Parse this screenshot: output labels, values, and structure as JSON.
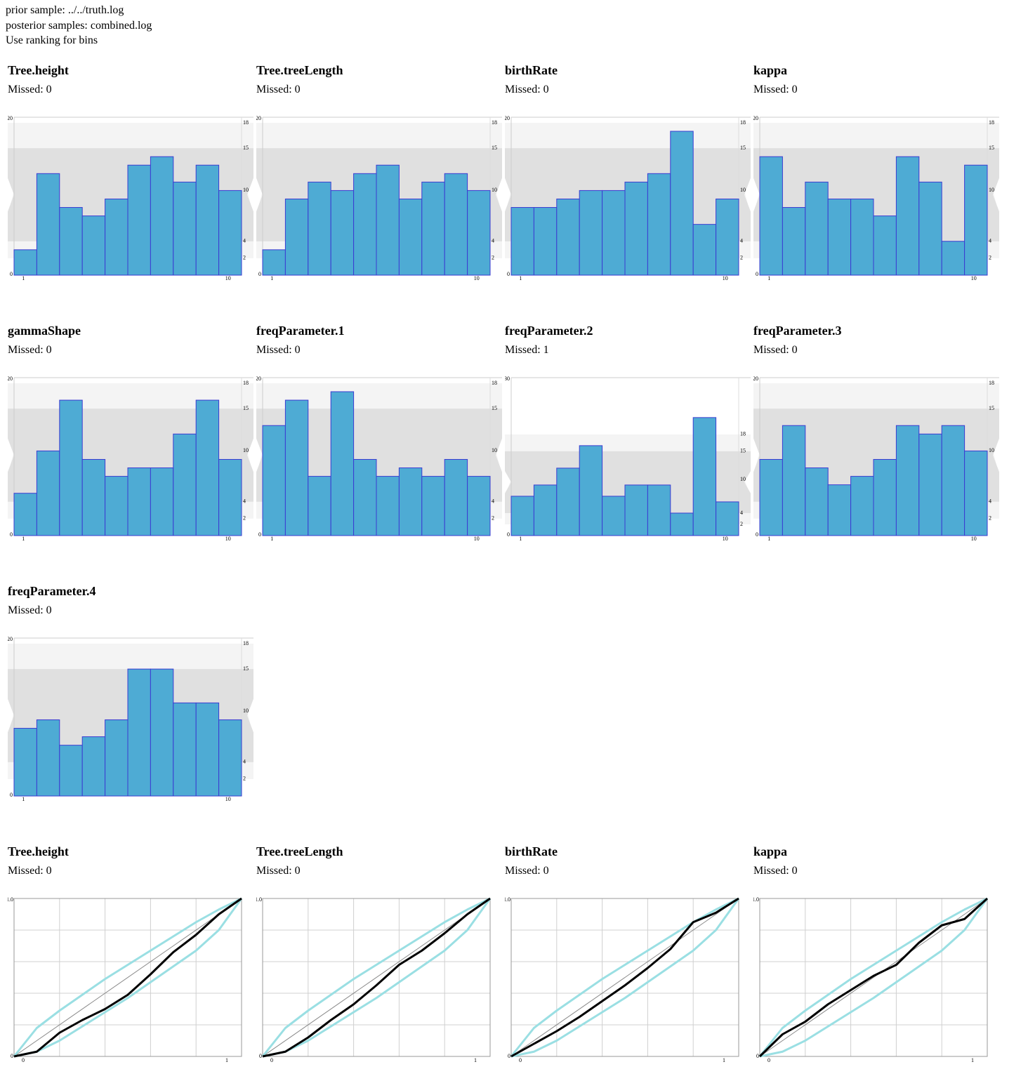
{
  "header": [
    "prior sample: ../../truth.log",
    "posterior samples: combined.log",
    "Use ranking for bins"
  ],
  "chart_data": [
    {
      "type": "bar",
      "title": "Tree.height",
      "subtitle": "Missed: 0",
      "x": [
        1,
        2,
        3,
        4,
        5,
        6,
        7,
        8,
        9,
        10
      ],
      "values": [
        3,
        12,
        8,
        7,
        9,
        13,
        14,
        11,
        13,
        10
      ],
      "axis": "y2",
      "color": "#4eabd4",
      "edge_color": "#3b3bd1",
      "xlim": [
        0.5,
        10.5
      ],
      "xticks": [
        1,
        10
      ],
      "ylim": [
        0,
        20
      ],
      "yticks": [
        0,
        20
      ],
      "y2lim": [
        0,
        18.66
      ],
      "y2ticks": [
        2,
        4,
        10,
        15,
        18
      ],
      "bands": [
        [
          2,
          18
        ],
        [
          4,
          15
        ]
      ],
      "band_colors": [
        "#f4f4f4",
        "#e0e0e0"
      ]
    },
    {
      "type": "bar",
      "title": "Tree.treeLength",
      "subtitle": "Missed: 0",
      "x": [
        1,
        2,
        3,
        4,
        5,
        6,
        7,
        8,
        9,
        10
      ],
      "values": [
        3,
        9,
        11,
        10,
        12,
        13,
        9,
        11,
        12,
        10
      ],
      "axis": "y2",
      "color": "#4eabd4",
      "edge_color": "#3b3bd1",
      "xlim": [
        0.5,
        10.5
      ],
      "xticks": [
        1,
        10
      ],
      "ylim": [
        0,
        20
      ],
      "yticks": [
        0,
        20
      ],
      "y2lim": [
        0,
        18.66
      ],
      "y2ticks": [
        2,
        4,
        10,
        15,
        18
      ],
      "bands": [
        [
          2,
          18
        ],
        [
          4,
          15
        ]
      ],
      "band_colors": [
        "#f4f4f4",
        "#e0e0e0"
      ]
    },
    {
      "type": "bar",
      "title": "birthRate",
      "subtitle": "Missed: 0",
      "x": [
        1,
        2,
        3,
        4,
        5,
        6,
        7,
        8,
        9,
        10
      ],
      "values": [
        8,
        8,
        9,
        10,
        10,
        11,
        12,
        17,
        6,
        9
      ],
      "axis": "y2",
      "color": "#4eabd4",
      "edge_color": "#3b3bd1",
      "xlim": [
        0.5,
        10.5
      ],
      "xticks": [
        1,
        10
      ],
      "ylim": [
        0,
        20
      ],
      "yticks": [
        0,
        20
      ],
      "y2lim": [
        0,
        18.66
      ],
      "y2ticks": [
        2,
        4,
        10,
        15,
        18
      ],
      "bands": [
        [
          2,
          18
        ],
        [
          4,
          15
        ]
      ],
      "band_colors": [
        "#f4f4f4",
        "#e0e0e0"
      ]
    },
    {
      "type": "bar",
      "title": "kappa",
      "subtitle": "Missed: 0",
      "x": [
        1,
        2,
        3,
        4,
        5,
        6,
        7,
        8,
        9,
        10
      ],
      "values": [
        14,
        8,
        11,
        9,
        9,
        7,
        14,
        11,
        4,
        13
      ],
      "axis": "y2",
      "color": "#4eabd4",
      "edge_color": "#3b3bd1",
      "xlim": [
        0.5,
        10.5
      ],
      "xticks": [
        1,
        10
      ],
      "ylim": [
        0,
        20
      ],
      "yticks": [
        0,
        20
      ],
      "y2lim": [
        0,
        18.66
      ],
      "y2ticks": [
        2,
        4,
        10,
        15,
        18
      ],
      "bands": [
        [
          2,
          18
        ],
        [
          4,
          15
        ]
      ],
      "band_colors": [
        "#f4f4f4",
        "#e0e0e0"
      ]
    },
    {
      "type": "bar",
      "title": "gammaShape",
      "subtitle": "Missed: 0",
      "x": [
        1,
        2,
        3,
        4,
        5,
        6,
        7,
        8,
        9,
        10
      ],
      "values": [
        5,
        10,
        16,
        9,
        7,
        8,
        8,
        12,
        16,
        9
      ],
      "axis": "y2",
      "color": "#4eabd4",
      "edge_color": "#3b3bd1",
      "xlim": [
        0.5,
        10.5
      ],
      "xticks": [
        1,
        10
      ],
      "ylim": [
        0,
        20
      ],
      "yticks": [
        0,
        20
      ],
      "y2lim": [
        0,
        18.66
      ],
      "y2ticks": [
        2,
        4,
        10,
        15,
        18
      ],
      "bands": [
        [
          2,
          18
        ],
        [
          4,
          15
        ]
      ],
      "band_colors": [
        "#f4f4f4",
        "#e0e0e0"
      ]
    },
    {
      "type": "bar",
      "title": "freqParameter.1",
      "subtitle": "Missed: 0",
      "x": [
        1,
        2,
        3,
        4,
        5,
        6,
        7,
        8,
        9,
        10
      ],
      "values": [
        13,
        16,
        7,
        17,
        9,
        7,
        8,
        7,
        9,
        7
      ],
      "axis": "y2",
      "color": "#4eabd4",
      "edge_color": "#3b3bd1",
      "xlim": [
        0.5,
        10.5
      ],
      "xticks": [
        1,
        10
      ],
      "ylim": [
        0,
        20
      ],
      "yticks": [
        0,
        20
      ],
      "y2lim": [
        0,
        18.66
      ],
      "y2ticks": [
        2,
        4,
        10,
        15,
        18
      ],
      "bands": [
        [
          2,
          18
        ],
        [
          4,
          15
        ]
      ],
      "band_colors": [
        "#f4f4f4",
        "#e0e0e0"
      ]
    },
    {
      "type": "bar",
      "title": "freqParameter.2",
      "subtitle": "Missed: 1",
      "x": [
        1,
        2,
        3,
        4,
        5,
        6,
        7,
        8,
        9,
        10
      ],
      "values": [
        7,
        9,
        12,
        16,
        7,
        9,
        9,
        4,
        21,
        6
      ],
      "axis": "y2",
      "color": "#4eabd4",
      "edge_color": "#3b3bd1",
      "xlim": [
        0.5,
        10.5
      ],
      "xticks": [
        1,
        10
      ],
      "ylim": [
        0,
        30
      ],
      "yticks": [
        0,
        30
      ],
      "y2lim": [
        0,
        28.1
      ],
      "y2ticks": [
        2,
        4,
        10,
        15,
        18
      ],
      "bands": [
        [
          2,
          18
        ],
        [
          4,
          15
        ]
      ],
      "band_colors": [
        "#f4f4f4",
        "#e0e0e0"
      ]
    },
    {
      "type": "bar",
      "title": "freqParameter.3",
      "subtitle": "Missed: 0",
      "x": [
        1,
        2,
        3,
        4,
        5,
        6,
        7,
        8,
        9,
        10
      ],
      "values": [
        9,
        13,
        8,
        6,
        7,
        9,
        13,
        12,
        13,
        10
      ],
      "axis": "y2",
      "color": "#4eabd4",
      "edge_color": "#3b3bd1",
      "xlim": [
        0.5,
        10.5
      ],
      "xticks": [
        1,
        10
      ],
      "ylim": [
        0,
        20
      ],
      "yticks": [
        0,
        20
      ],
      "y2lim": [
        0,
        18.66
      ],
      "y2ticks": [
        2,
        4,
        10,
        15,
        18
      ],
      "bands": [
        [
          2,
          18
        ],
        [
          4,
          15
        ]
      ],
      "band_colors": [
        "#f4f4f4",
        "#e0e0e0"
      ]
    },
    {
      "type": "bar",
      "title": "freqParameter.4",
      "subtitle": "Missed: 0",
      "x": [
        1,
        2,
        3,
        4,
        5,
        6,
        7,
        8,
        9,
        10
      ],
      "values": [
        8,
        9,
        6,
        7,
        9,
        15,
        15,
        11,
        11,
        9
      ],
      "axis": "y2",
      "color": "#4eabd4",
      "edge_color": "#3b3bd1",
      "xlim": [
        0.5,
        10.5
      ],
      "xticks": [
        1,
        10
      ],
      "ylim": [
        0,
        20
      ],
      "yticks": [
        0,
        20
      ],
      "y2lim": [
        0,
        18.66
      ],
      "y2ticks": [
        2,
        4,
        10,
        15,
        18
      ],
      "bands": [
        [
          2,
          18
        ],
        [
          4,
          15
        ]
      ],
      "band_colors": [
        "#f4f4f4",
        "#e0e0e0"
      ]
    },
    {
      "type": "line",
      "title": "Tree.height",
      "subtitle": "Missed: 0",
      "x": [
        0,
        0.1,
        0.2,
        0.3,
        0.4,
        0.5,
        0.6,
        0.7,
        0.8,
        0.9,
        1
      ],
      "series": [
        {
          "color": "#9adfe3",
          "values": [
            0,
            0.18,
            0.29,
            0.39,
            0.49,
            0.58,
            0.67,
            0.76,
            0.85,
            0.93,
            1
          ]
        },
        {
          "color": "#9adfe3",
          "values": [
            0,
            0.03,
            0.1,
            0.19,
            0.28,
            0.37,
            0.47,
            0.57,
            0.67,
            0.8,
            1
          ]
        },
        {
          "color": "#000000",
          "values": [
            0,
            0.03,
            0.15,
            0.23,
            0.3,
            0.39,
            0.52,
            0.66,
            0.77,
            0.9,
            1
          ]
        }
      ],
      "diagonal_color": "#888888",
      "xlim": [
        0,
        1
      ],
      "ylim": [
        0,
        1
      ],
      "xticks": [
        0,
        1
      ],
      "yticks": [
        0,
        {
          "value": 1,
          "label": "1.0"
        }
      ],
      "xgrid": [
        0.2,
        0.4,
        0.6,
        0.8
      ],
      "ygrid": [
        0.2,
        0.4,
        0.6,
        0.8
      ]
    },
    {
      "type": "line",
      "title": "Tree.treeLength",
      "subtitle": "Missed: 0",
      "x": [
        0,
        0.1,
        0.2,
        0.3,
        0.4,
        0.5,
        0.6,
        0.7,
        0.8,
        0.9,
        1
      ],
      "series": [
        {
          "color": "#9adfe3",
          "values": [
            0,
            0.18,
            0.29,
            0.39,
            0.49,
            0.58,
            0.67,
            0.76,
            0.85,
            0.93,
            1
          ]
        },
        {
          "color": "#9adfe3",
          "values": [
            0,
            0.03,
            0.1,
            0.19,
            0.28,
            0.37,
            0.47,
            0.57,
            0.67,
            0.8,
            1
          ]
        },
        {
          "color": "#000000",
          "values": [
            0,
            0.03,
            0.12,
            0.23,
            0.33,
            0.45,
            0.58,
            0.67,
            0.78,
            0.9,
            1
          ]
        }
      ],
      "diagonal_color": "#888888",
      "xlim": [
        0,
        1
      ],
      "ylim": [
        0,
        1
      ],
      "xticks": [
        0,
        1
      ],
      "yticks": [
        0,
        {
          "value": 1,
          "label": "1.0"
        }
      ],
      "xgrid": [
        0.2,
        0.4,
        0.6,
        0.8
      ],
      "ygrid": [
        0.2,
        0.4,
        0.6,
        0.8
      ]
    },
    {
      "type": "line",
      "title": "birthRate",
      "subtitle": "Missed: 0",
      "x": [
        0,
        0.1,
        0.2,
        0.3,
        0.4,
        0.5,
        0.6,
        0.7,
        0.8,
        0.9,
        1
      ],
      "series": [
        {
          "color": "#9adfe3",
          "values": [
            0,
            0.18,
            0.29,
            0.39,
            0.49,
            0.58,
            0.67,
            0.76,
            0.85,
            0.93,
            1
          ]
        },
        {
          "color": "#9adfe3",
          "values": [
            0,
            0.03,
            0.1,
            0.19,
            0.28,
            0.37,
            0.47,
            0.57,
            0.67,
            0.8,
            1
          ]
        },
        {
          "color": "#000000",
          "values": [
            0,
            0.08,
            0.16,
            0.25,
            0.35,
            0.45,
            0.56,
            0.68,
            0.85,
            0.91,
            1
          ]
        }
      ],
      "diagonal_color": "#888888",
      "xlim": [
        0,
        1
      ],
      "ylim": [
        0,
        1
      ],
      "xticks": [
        0,
        1
      ],
      "yticks": [
        0,
        {
          "value": 1,
          "label": "1.0"
        }
      ],
      "xgrid": [
        0.2,
        0.4,
        0.6,
        0.8
      ],
      "ygrid": [
        0.2,
        0.4,
        0.6,
        0.8
      ]
    },
    {
      "type": "line",
      "title": "kappa",
      "subtitle": "Missed: 0",
      "x": [
        0,
        0.1,
        0.2,
        0.3,
        0.4,
        0.5,
        0.6,
        0.7,
        0.8,
        0.9,
        1
      ],
      "series": [
        {
          "color": "#9adfe3",
          "values": [
            0,
            0.18,
            0.29,
            0.39,
            0.49,
            0.58,
            0.67,
            0.76,
            0.85,
            0.93,
            1
          ]
        },
        {
          "color": "#9adfe3",
          "values": [
            0,
            0.03,
            0.1,
            0.19,
            0.28,
            0.37,
            0.47,
            0.57,
            0.67,
            0.8,
            1
          ]
        },
        {
          "color": "#000000",
          "values": [
            0,
            0.14,
            0.22,
            0.33,
            0.42,
            0.51,
            0.58,
            0.72,
            0.83,
            0.87,
            1
          ]
        }
      ],
      "diagonal_color": "#888888",
      "xlim": [
        0,
        1
      ],
      "ylim": [
        0,
        1
      ],
      "xticks": [
        0,
        1
      ],
      "yticks": [
        0,
        {
          "value": 1,
          "label": "1.0"
        }
      ],
      "xgrid": [
        0.2,
        0.4,
        0.6,
        0.8
      ],
      "ygrid": [
        0.2,
        0.4,
        0.6,
        0.8
      ]
    }
  ]
}
